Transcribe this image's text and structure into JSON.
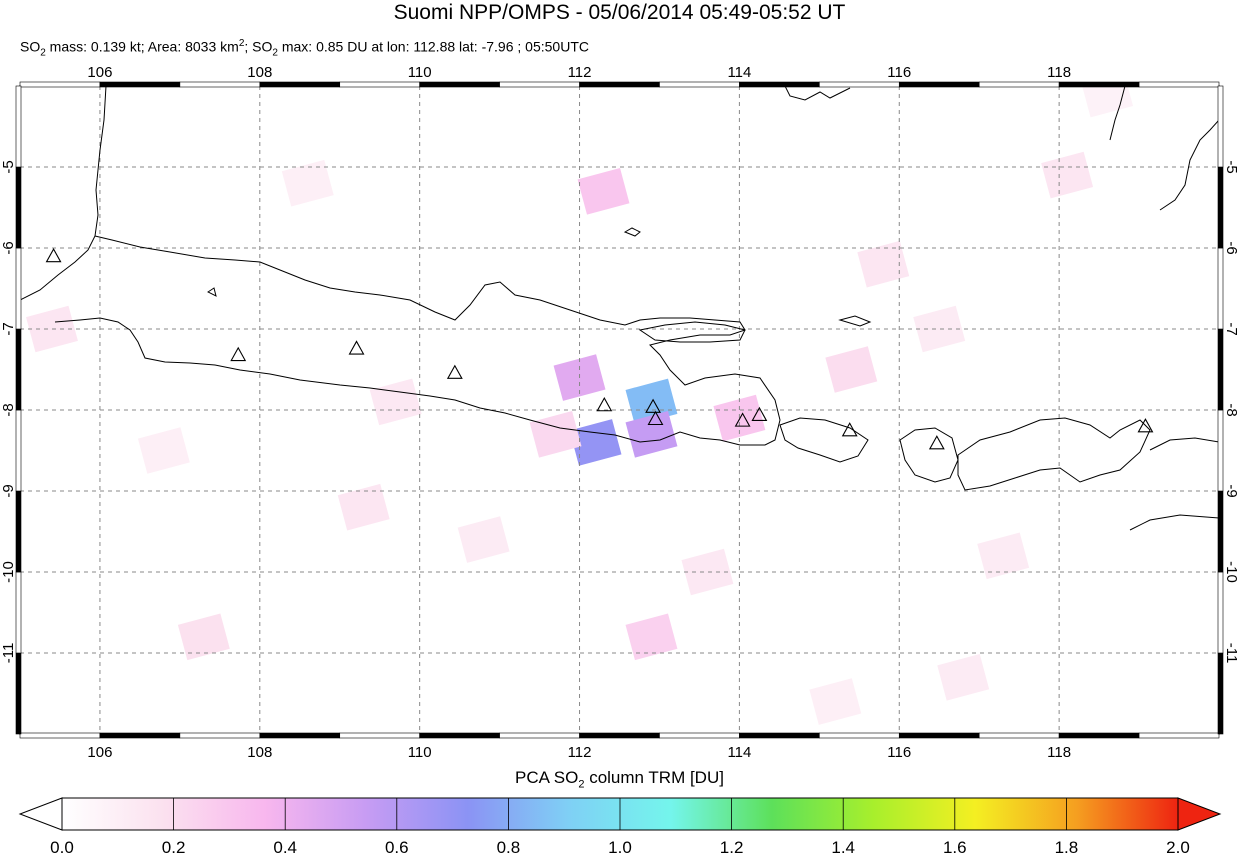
{
  "header": {
    "title": "Suomi NPP/OMPS - 05/06/2014 05:49-05:52 UT",
    "subtitle": {
      "so2_mass": "0.139 kt",
      "area": "8033 km",
      "so2_max": "0.85 DU at lon: 112.88 lat: -7.96 ; 05:50UTC"
    }
  },
  "map": {
    "lon_range": [
      105.0,
      120.0
    ],
    "lat_range": [
      -12.0,
      -4.0
    ],
    "lon_ticks": [
      "106",
      "108",
      "110",
      "112",
      "114",
      "116",
      "118"
    ],
    "lat_ticks": [
      "-5",
      "-6",
      "-7",
      "-8",
      "-9",
      "-10",
      "-11"
    ],
    "grid": "dashed",
    "coastline_color": "#000000",
    "volcano_marker": "triangle-icon",
    "volcanoes": [
      {
        "lon": 105.42,
        "lat": -6.1
      },
      {
        "lon": 107.73,
        "lat": -7.32
      },
      {
        "lon": 109.21,
        "lat": -7.24
      },
      {
        "lon": 110.44,
        "lat": -7.54
      },
      {
        "lon": 112.31,
        "lat": -7.94
      },
      {
        "lon": 112.92,
        "lat": -7.96
      },
      {
        "lon": 112.95,
        "lat": -8.11
      },
      {
        "lon": 114.04,
        "lat": -8.13
      },
      {
        "lon": 114.25,
        "lat": -8.06
      },
      {
        "lon": 115.38,
        "lat": -8.25
      },
      {
        "lon": 116.47,
        "lat": -8.41
      },
      {
        "lon": 119.08,
        "lat": -8.2
      }
    ],
    "so2_pixels": [
      {
        "lon": 112.0,
        "lat": -7.6,
        "du": 0.45
      },
      {
        "lon": 112.9,
        "lat": -7.9,
        "du": 0.85
      },
      {
        "lon": 112.2,
        "lat": -8.4,
        "du": 0.7
      },
      {
        "lon": 112.9,
        "lat": -8.3,
        "du": 0.55
      },
      {
        "lon": 112.3,
        "lat": -5.3,
        "du": 0.3
      },
      {
        "lon": 114.0,
        "lat": -8.1,
        "du": 0.3
      },
      {
        "lon": 111.7,
        "lat": -8.3,
        "du": 0.22
      },
      {
        "lon": 112.9,
        "lat": -10.8,
        "du": 0.25
      },
      {
        "lon": 107.3,
        "lat": -10.8,
        "du": 0.18
      },
      {
        "lon": 115.4,
        "lat": -7.5,
        "du": 0.2
      },
      {
        "lon": 115.8,
        "lat": -6.2,
        "du": 0.15
      },
      {
        "lon": 116.5,
        "lat": -7.0,
        "du": 0.12
      },
      {
        "lon": 118.1,
        "lat": -5.1,
        "du": 0.15
      },
      {
        "lon": 105.4,
        "lat": -7.0,
        "du": 0.15
      },
      {
        "lon": 109.3,
        "lat": -9.2,
        "du": 0.15
      },
      {
        "lon": 110.8,
        "lat": -9.6,
        "du": 0.12
      },
      {
        "lon": 113.6,
        "lat": -10.0,
        "du": 0.14
      },
      {
        "lon": 117.3,
        "lat": -9.8,
        "du": 0.12
      },
      {
        "lon": 116.8,
        "lat": -11.3,
        "du": 0.12
      },
      {
        "lon": 109.7,
        "lat": -7.9,
        "du": 0.14
      },
      {
        "lon": 115.2,
        "lat": -11.6,
        "du": 0.1
      },
      {
        "lon": 106.8,
        "lat": -8.5,
        "du": 0.1
      },
      {
        "lon": 108.6,
        "lat": -5.2,
        "du": 0.1
      },
      {
        "lon": 118.6,
        "lat": -4.1,
        "du": 0.08
      }
    ]
  },
  "colorbar": {
    "title": "PCA SO",
    "title_sub": "2",
    "title_rest": " column TRM [DU]",
    "ticks": [
      "0.0",
      "0.2",
      "0.4",
      "0.6",
      "0.8",
      "1.0",
      "1.2",
      "1.4",
      "1.6",
      "1.8",
      "2.0"
    ],
    "range": [
      0.0,
      2.0
    ],
    "colors": [
      "#ffffff",
      "#fbe1ef",
      "#f8b7ee",
      "#c79cf3",
      "#8b93f4",
      "#7fd0f5",
      "#74f5ec",
      "#5de05a",
      "#a8ef2c",
      "#f4ef22",
      "#f59f20",
      "#ee2411"
    ]
  }
}
